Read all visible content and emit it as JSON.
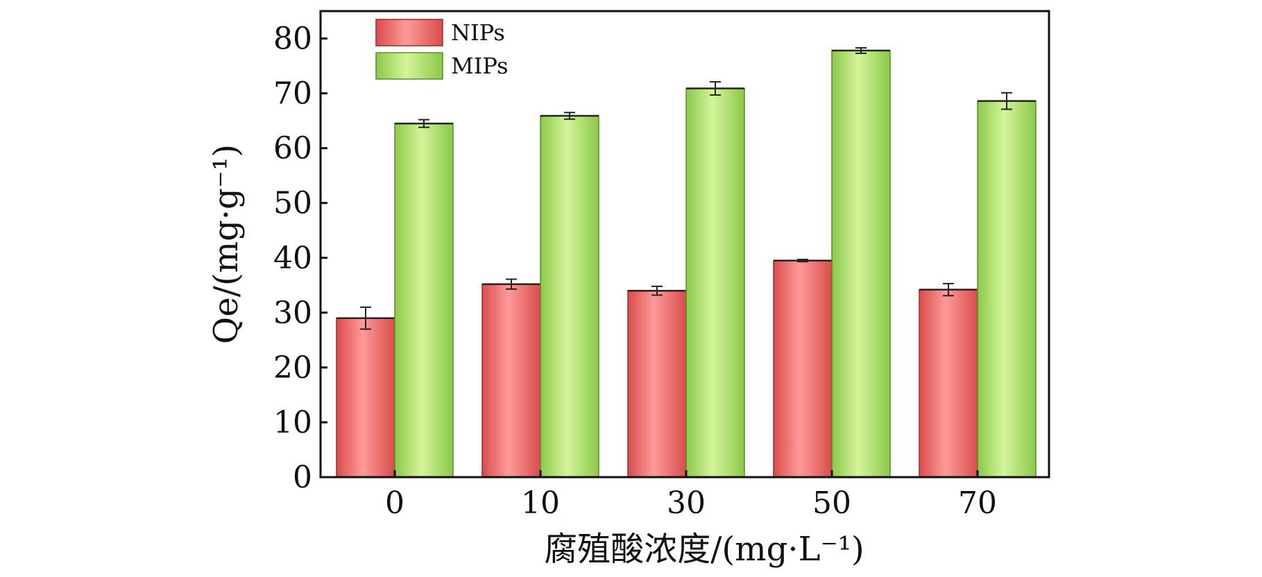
{
  "chart_data": {
    "type": "bar",
    "categories": [
      "0",
      "10",
      "30",
      "50",
      "70"
    ],
    "series": [
      {
        "name": "NIPs",
        "color": "#f26c6c",
        "values": [
          29.0,
          35.2,
          34.0,
          39.5,
          34.2
        ],
        "errors": [
          2.0,
          0.9,
          0.8,
          0.2,
          1.1
        ]
      },
      {
        "name": "MIPs",
        "color": "#a6dc62",
        "values": [
          64.5,
          65.9,
          70.9,
          77.8,
          68.6
        ],
        "errors": [
          0.7,
          0.6,
          1.2,
          0.5,
          1.5
        ]
      }
    ],
    "xlabel": "腐殖酸浓度/(mg·L⁻¹)",
    "ylabel": "Qe/(mg·g⁻¹)",
    "ylim": [
      0,
      85
    ],
    "yticks": [
      "0",
      "10",
      "20",
      "30",
      "40",
      "50",
      "60",
      "70",
      "80"
    ],
    "legend_position": "top-left",
    "grid": false
  }
}
